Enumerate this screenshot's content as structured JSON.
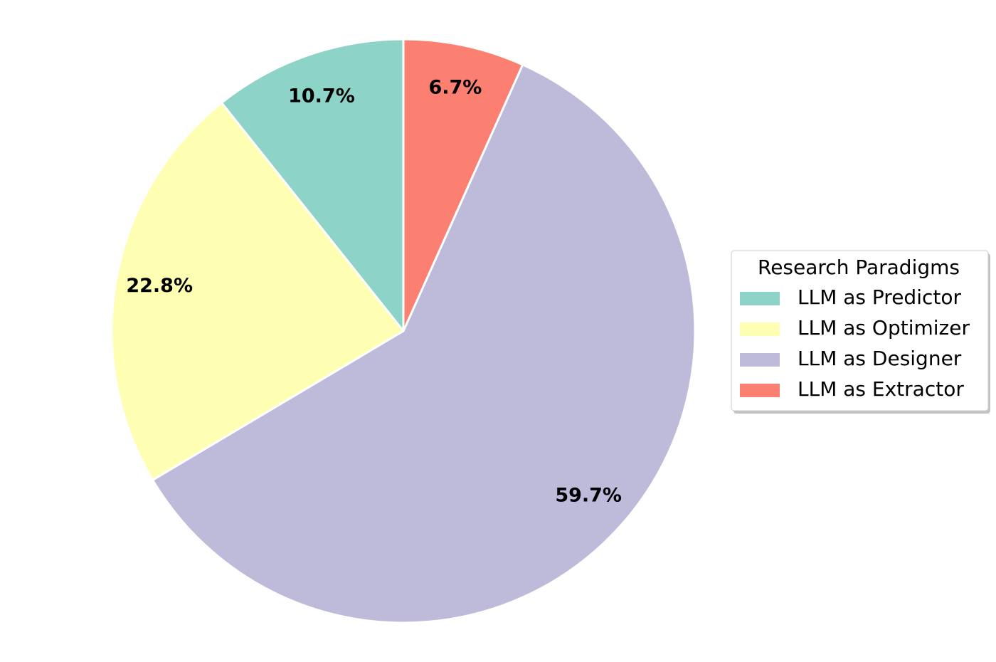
{
  "chart_data": {
    "type": "pie",
    "categories": [
      "LLM as Predictor",
      "LLM as Optimizer",
      "LLM as Designer",
      "LLM as Extractor"
    ],
    "values": [
      10.7,
      22.8,
      59.7,
      6.7
    ],
    "value_labels": [
      "10.7%",
      "22.8%",
      "59.7%",
      "6.7%"
    ],
    "colors": [
      "#8dd3c7",
      "#ffffb3",
      "#bebada",
      "#fb8072"
    ],
    "legend_title": "Research Paradigms",
    "legend": "center right"
  }
}
